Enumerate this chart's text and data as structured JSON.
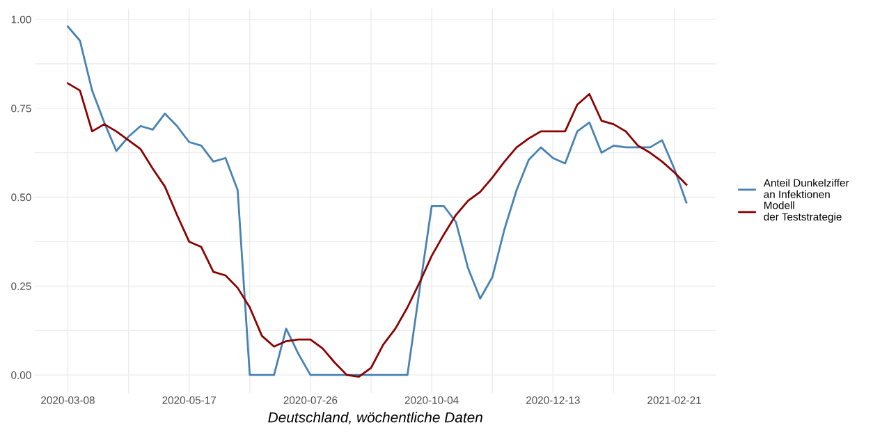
{
  "chart_data": {
    "type": "line",
    "xlabel": "Deutschland, wöchentliche Daten",
    "x": [
      "2020-03-08",
      "2020-03-15",
      "2020-03-22",
      "2020-03-29",
      "2020-04-05",
      "2020-04-12",
      "2020-04-19",
      "2020-04-26",
      "2020-05-03",
      "2020-05-10",
      "2020-05-17",
      "2020-05-24",
      "2020-05-31",
      "2020-06-07",
      "2020-06-14",
      "2020-06-21",
      "2020-06-28",
      "2020-07-05",
      "2020-07-12",
      "2020-07-19",
      "2020-07-26",
      "2020-08-02",
      "2020-08-09",
      "2020-08-16",
      "2020-08-23",
      "2020-08-30",
      "2020-09-06",
      "2020-09-13",
      "2020-09-20",
      "2020-09-27",
      "2020-10-04",
      "2020-10-11",
      "2020-10-18",
      "2020-10-25",
      "2020-11-01",
      "2020-11-08",
      "2020-11-15",
      "2020-11-22",
      "2020-11-29",
      "2020-12-06",
      "2020-12-13",
      "2020-12-20",
      "2020-12-27",
      "2021-01-03",
      "2021-01-10",
      "2021-01-17",
      "2021-01-24",
      "2021-01-31",
      "2021-02-07",
      "2021-02-14",
      "2021-02-21",
      "2021-02-28"
    ],
    "series": [
      {
        "name": "Anteil Dunkelziffer\nan Infektionen",
        "color": "#4682b4",
        "values": [
          0.98,
          0.94,
          0.8,
          0.71,
          0.63,
          0.67,
          0.7,
          0.69,
          0.735,
          0.7,
          0.655,
          0.645,
          0.6,
          0.61,
          0.52,
          0,
          0,
          0,
          0.13,
          0.06,
          0,
          0,
          0,
          0,
          0,
          0,
          0,
          0,
          0,
          0.24,
          0.475,
          0.475,
          0.43,
          0.3,
          0.215,
          0.275,
          0.41,
          0.52,
          0.605,
          0.64,
          0.61,
          0.595,
          0.685,
          0.71,
          0.625,
          0.645,
          0.64,
          0.64,
          0.64,
          0.66,
          0.58,
          0.485
        ]
      },
      {
        "name": "Modell\nder Teststrategie",
        "color": "#8b0000",
        "values": [
          0.82,
          0.8,
          0.685,
          0.705,
          0.685,
          0.66,
          0.635,
          0.58,
          0.53,
          0.45,
          0.375,
          0.36,
          0.29,
          0.28,
          0.245,
          0.19,
          0.11,
          0.08,
          0.095,
          0.1,
          0.1,
          0.075,
          0.035,
          0.0,
          -0.005,
          0.02,
          0.085,
          0.13,
          0.19,
          0.26,
          0.335,
          0.395,
          0.45,
          0.49,
          0.515,
          0.555,
          0.6,
          0.64,
          0.665,
          0.685,
          0.685,
          0.685,
          0.76,
          0.79,
          0.715,
          0.705,
          0.685,
          0.645,
          0.625,
          0.6,
          0.57,
          0.535
        ]
      }
    ],
    "xlim": [
      "2020-02-18",
      "2021-03-17"
    ],
    "xticks": [
      {
        "value": "2020-03-08",
        "label": "2020-03-08"
      },
      {
        "value": "2020-04-12",
        "label": null
      },
      {
        "value": "2020-05-17",
        "label": "2020-05-17"
      },
      {
        "value": "2020-06-21",
        "label": null
      },
      {
        "value": "2020-07-26",
        "label": "2020-07-26"
      },
      {
        "value": "2020-08-30",
        "label": null
      },
      {
        "value": "2020-10-04",
        "label": "2020-10-04"
      },
      {
        "value": "2020-11-08",
        "label": null
      },
      {
        "value": "2020-12-13",
        "label": "2020-12-13"
      },
      {
        "value": "2021-01-17",
        "label": null
      },
      {
        "value": "2021-02-21",
        "label": "2021-02-21"
      }
    ],
    "ylim": [
      -0.05,
      1.03
    ],
    "yticks": [
      {
        "value": 0,
        "label": "0.00"
      },
      {
        "value": 0.125,
        "label": null
      },
      {
        "value": 0.25,
        "label": "0.25"
      },
      {
        "value": 0.375,
        "label": null
      },
      {
        "value": 0.5,
        "label": "0.50"
      },
      {
        "value": 0.625,
        "label": null
      },
      {
        "value": 0.75,
        "label": "0.75"
      },
      {
        "value": 0.875,
        "label": null
      },
      {
        "value": 1,
        "label": "1.00"
      }
    ],
    "grid": true,
    "legend": "right"
  }
}
